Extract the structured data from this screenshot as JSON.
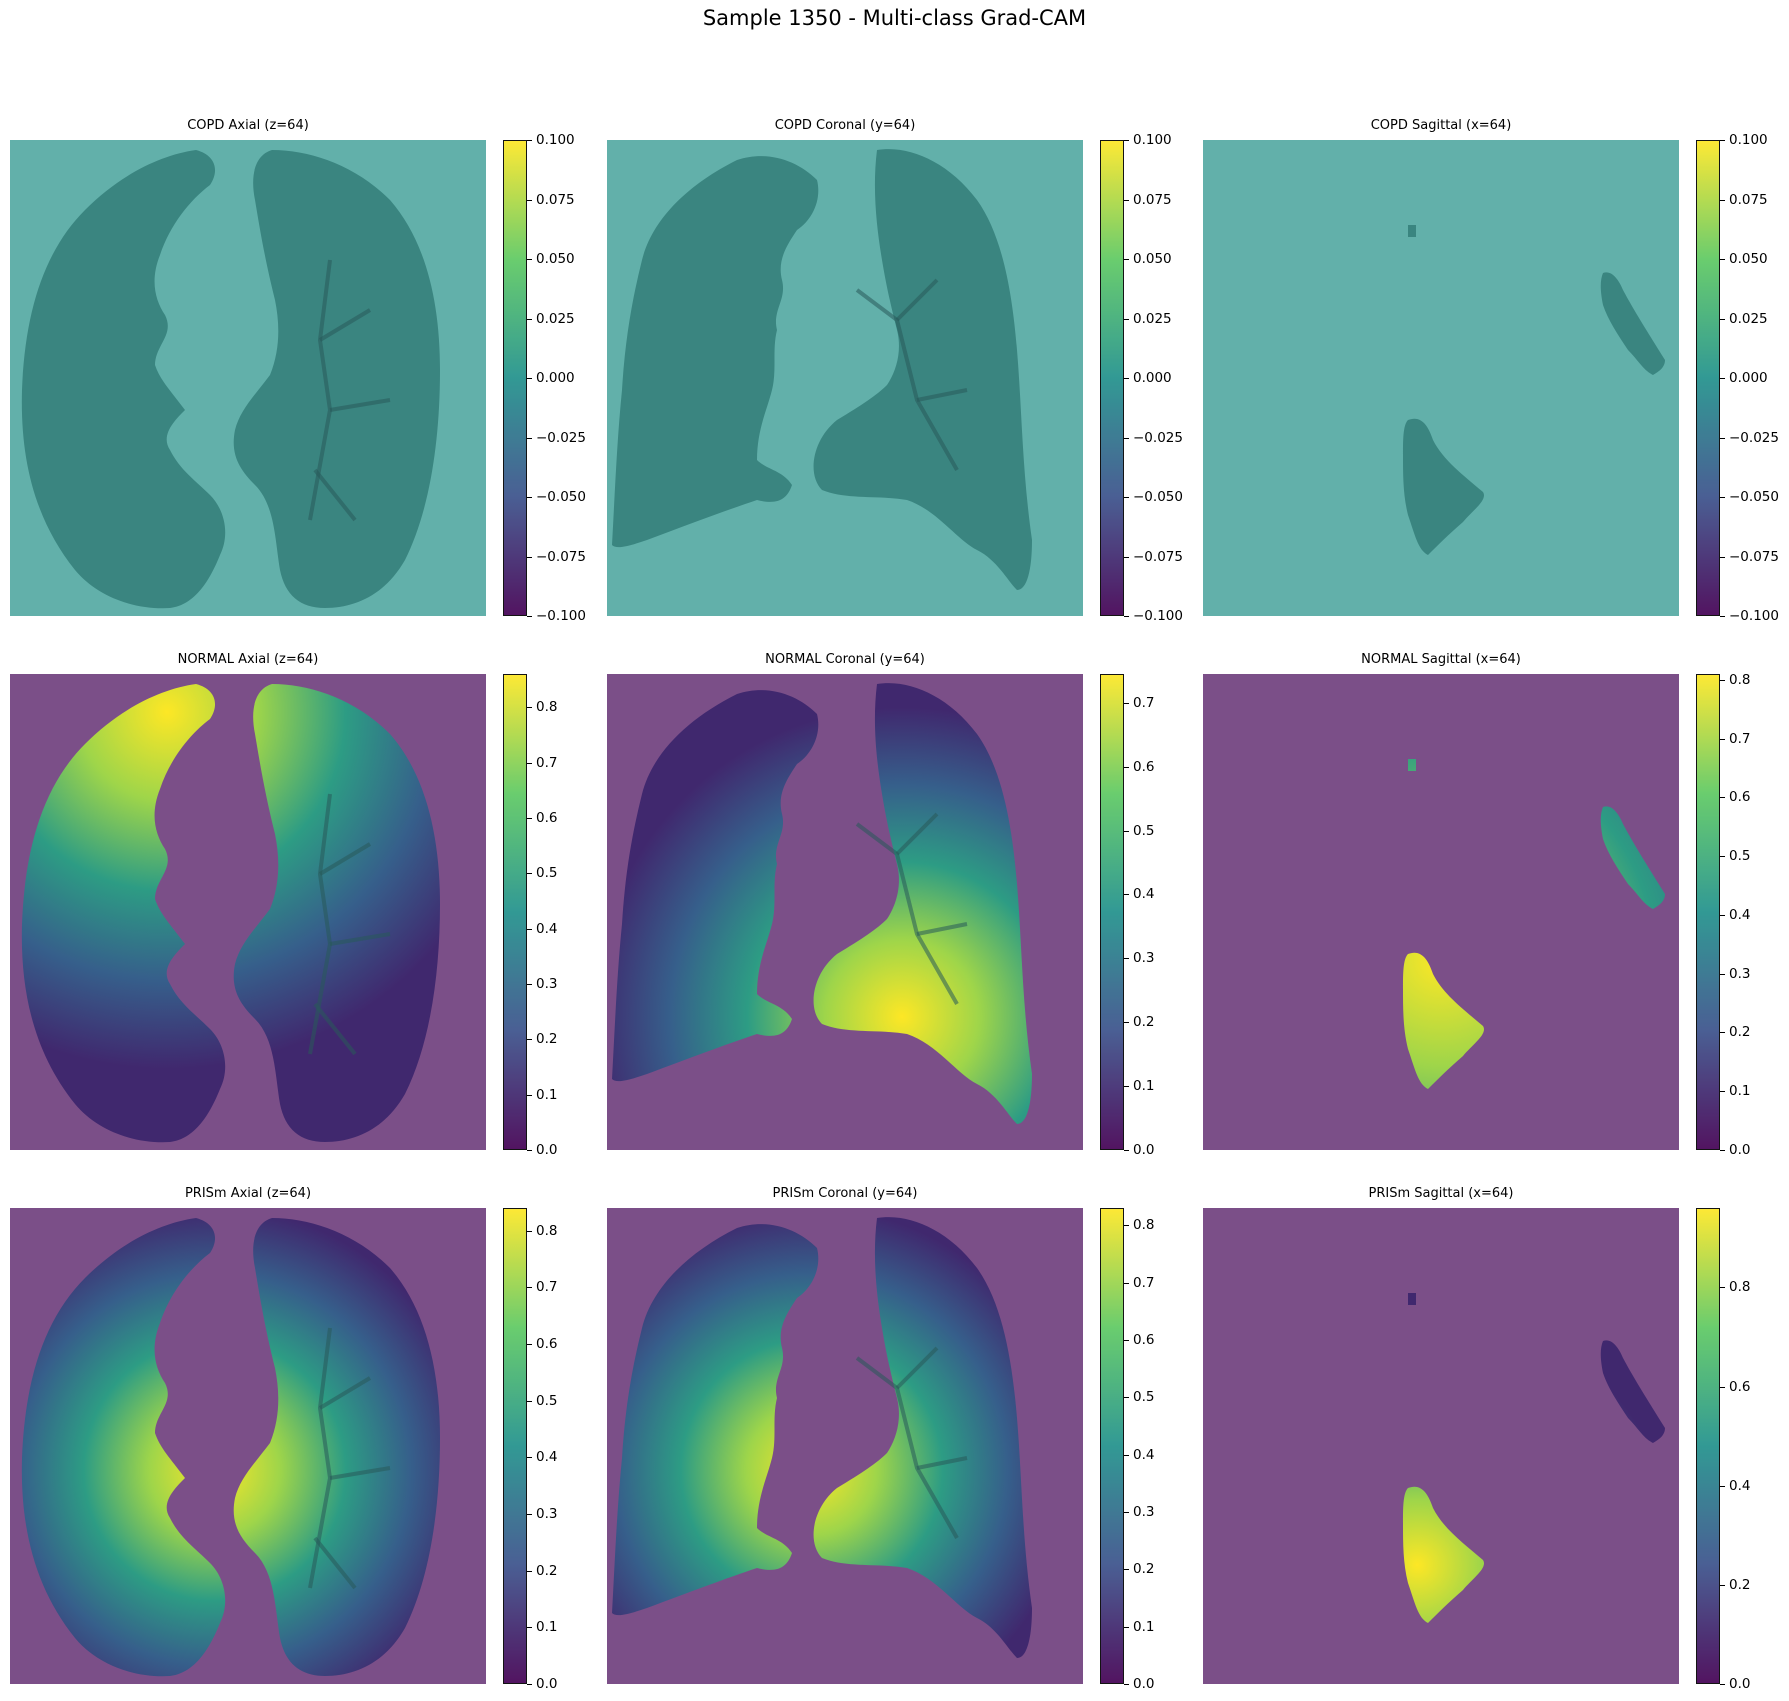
{
  "figure": {
    "title": "Sample 1350 - Multi-class Grad-CAM"
  },
  "colors": {
    "teal_bg": "#62b0aa",
    "purple_bg": "#7b4f88",
    "lung_dark": "#3a8580",
    "yellow": "#efe34b",
    "green": "#7fcf6e"
  },
  "panels": [
    {
      "title": "COPD Axial (z=64)",
      "plane": "axial",
      "heat": "none",
      "cbar_ticks": [
        "0.100",
        "0.075",
        "0.050",
        "0.025",
        "0.000",
        "−0.025",
        "−0.050",
        "−0.075",
        "−0.100"
      ],
      "cbar_min": -0.1,
      "cbar_max": 0.1
    },
    {
      "title": "COPD Coronal (y=64)",
      "plane": "coronal",
      "heat": "none",
      "cbar_ticks": [
        "0.100",
        "0.075",
        "0.050",
        "0.025",
        "0.000",
        "−0.025",
        "−0.050",
        "−0.075",
        "−0.100"
      ],
      "cbar_min": -0.1,
      "cbar_max": 0.1
    },
    {
      "title": "COPD Sagittal (x=64)",
      "plane": "sagittal",
      "heat": "none",
      "cbar_ticks": [
        "0.100",
        "0.075",
        "0.050",
        "0.025",
        "0.000",
        "−0.025",
        "−0.050",
        "−0.075",
        "−0.100"
      ],
      "cbar_min": -0.1,
      "cbar_max": 0.1
    },
    {
      "title": "NORMAL Axial (z=64)",
      "plane": "axial",
      "heat": "top-left",
      "cbar_ticks": [
        "0.8",
        "0.7",
        "0.6",
        "0.5",
        "0.4",
        "0.3",
        "0.2",
        "0.1",
        "0.0"
      ],
      "cbar_min": 0.0,
      "cbar_max": 0.86
    },
    {
      "title": "NORMAL Coronal (y=64)",
      "plane": "coronal",
      "heat": "bottom-right",
      "cbar_ticks": [
        "0.7",
        "0.6",
        "0.5",
        "0.4",
        "0.3",
        "0.2",
        "0.1",
        "0.0"
      ],
      "cbar_min": 0.0,
      "cbar_max": 0.745
    },
    {
      "title": "NORMAL Sagittal (x=64)",
      "plane": "sagittal",
      "heat": "bright",
      "cbar_ticks": [
        "0.8",
        "0.7",
        "0.6",
        "0.5",
        "0.4",
        "0.3",
        "0.2",
        "0.1",
        "0.0"
      ],
      "cbar_min": 0.0,
      "cbar_max": 0.81
    },
    {
      "title": "PRISm Axial (z=64)",
      "plane": "axial",
      "heat": "center",
      "cbar_ticks": [
        "0.8",
        "0.7",
        "0.6",
        "0.5",
        "0.4",
        "0.3",
        "0.2",
        "0.1",
        "0.0"
      ],
      "cbar_min": 0.0,
      "cbar_max": 0.84
    },
    {
      "title": "PRISm Coronal (y=64)",
      "plane": "coronal",
      "heat": "center",
      "cbar_ticks": [
        "0.8",
        "0.7",
        "0.6",
        "0.5",
        "0.4",
        "0.3",
        "0.2",
        "0.1",
        "0.0"
      ],
      "cbar_min": 0.0,
      "cbar_max": 0.83
    },
    {
      "title": "PRISm Sagittal (x=64)",
      "plane": "sagittal",
      "heat": "lower",
      "cbar_ticks": [
        "0.8",
        "0.6",
        "0.4",
        "0.2",
        "0.0"
      ],
      "cbar_min": 0.0,
      "cbar_max": 0.96
    }
  ]
}
